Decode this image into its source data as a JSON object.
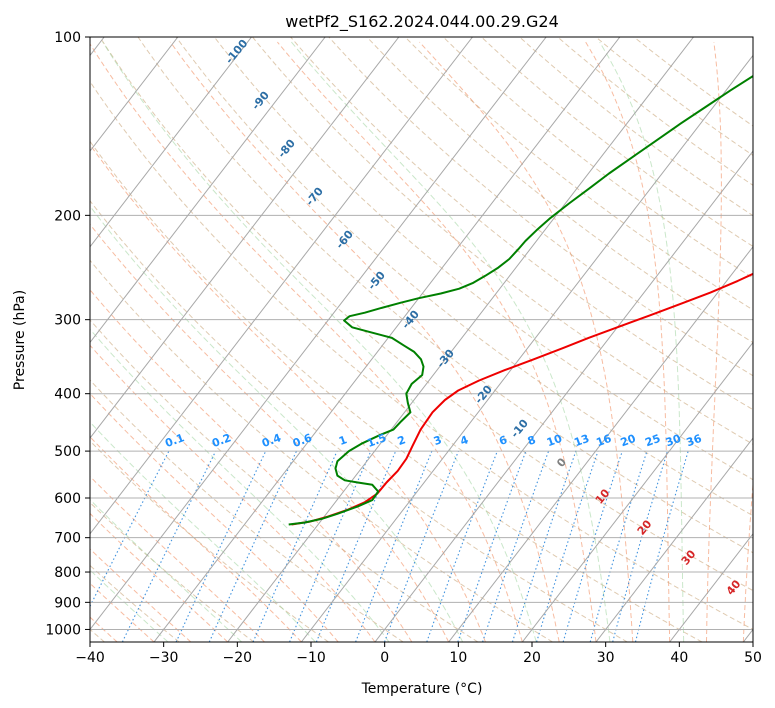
{
  "chart_data": {
    "type": "line",
    "title": "wetPf2_S162.2024.044.00.29.G24",
    "xlabel": "Temperature (°C)",
    "ylabel": "Pressure (hPa)",
    "xlim": [
      -40,
      50
    ],
    "ylim": [
      1050,
      100
    ],
    "y_scale": "log",
    "grid": true,
    "xticks": [
      "−40",
      "−30",
      "−20",
      "−10",
      "0",
      "10",
      "20",
      "30",
      "40",
      "50"
    ],
    "yticks": [
      {
        "p": 100,
        "label": "100"
      },
      {
        "p": 200,
        "label": "200"
      },
      {
        "p": 300,
        "label": "300"
      },
      {
        "p": 400,
        "label": "400"
      },
      {
        "p": 500,
        "label": "500"
      },
      {
        "p": 600,
        "label": "600"
      },
      {
        "p": 700,
        "label": "700"
      },
      {
        "p": 800,
        "label": "800"
      },
      {
        "p": 900,
        "label": "900"
      },
      {
        "p": 1000,
        "label": "1000"
      }
    ],
    "series": [
      {
        "color": "#ee0000",
        "points": [
          [
            -23.6,
            665
          ],
          [
            -21.5,
            658
          ],
          [
            -19.5,
            645
          ],
          [
            -17.5,
            628
          ],
          [
            -16,
            610
          ],
          [
            -15.2,
            590
          ],
          [
            -15.1,
            565
          ],
          [
            -14.8,
            540
          ],
          [
            -14.9,
            515
          ],
          [
            -15.4,
            490
          ],
          [
            -16,
            460
          ],
          [
            -16.2,
            430
          ],
          [
            -15.8,
            410
          ],
          [
            -15,
            395
          ],
          [
            -13.2,
            380
          ],
          [
            -10.8,
            365
          ],
          [
            -8,
            350
          ],
          [
            -5.2,
            335
          ],
          [
            -2.8,
            322
          ],
          [
            0,
            309
          ],
          [
            3.2,
            295
          ],
          [
            6.2,
            282
          ],
          [
            9,
            270
          ],
          [
            11.5,
            258
          ],
          [
            14,
            245
          ],
          [
            16.3,
            232
          ],
          [
            18.5,
            218
          ],
          [
            20.3,
            208
          ],
          [
            22,
            200
          ],
          [
            24,
            189
          ],
          [
            26,
            178
          ],
          [
            27.5,
            170
          ],
          [
            29,
            162
          ],
          [
            30.5,
            153
          ],
          [
            31.8,
            145
          ],
          [
            33.5,
            135
          ],
          [
            35,
            126
          ],
          [
            36.8,
            118
          ],
          [
            38.8,
            111
          ],
          [
            41,
            104
          ],
          [
            43.5,
            100
          ]
        ]
      },
      {
        "color": "#008000",
        "points": [
          [
            -24,
            665
          ],
          [
            -22,
            660
          ],
          [
            -20,
            650
          ],
          [
            -18.5,
            638
          ],
          [
            -16.5,
            620
          ],
          [
            -15.2,
            605
          ],
          [
            -15.3,
            585
          ],
          [
            -16.8,
            570
          ],
          [
            -19,
            565
          ],
          [
            -21,
            560
          ],
          [
            -22.5,
            550
          ],
          [
            -23.5,
            535
          ],
          [
            -24,
            520
          ],
          [
            -23.5,
            500
          ],
          [
            -22.5,
            485
          ],
          [
            -21,
            470
          ],
          [
            -19.7,
            460
          ],
          [
            -19.5,
            445
          ],
          [
            -19.2,
            430
          ],
          [
            -20.5,
            415
          ],
          [
            -21.7,
            400
          ],
          [
            -22,
            385
          ],
          [
            -21.5,
            372
          ],
          [
            -22.2,
            360
          ],
          [
            -23.3,
            350
          ],
          [
            -25,
            340
          ],
          [
            -27,
            332
          ],
          [
            -29.5,
            322
          ],
          [
            -33,
            315
          ],
          [
            -36,
            309
          ],
          [
            -37.8,
            301
          ],
          [
            -37.5,
            296
          ],
          [
            -35.8,
            292
          ],
          [
            -34.2,
            287
          ],
          [
            -32,
            281
          ],
          [
            -30,
            276
          ],
          [
            -27.5,
            271
          ],
          [
            -25.5,
            266
          ],
          [
            -24.2,
            260
          ],
          [
            -23.3,
            253
          ],
          [
            -22.4,
            245
          ],
          [
            -21.8,
            237
          ],
          [
            -21.6,
            228
          ],
          [
            -21.5,
            221
          ],
          [
            -21.1,
            212
          ],
          [
            -20.5,
            202
          ],
          [
            -19.5,
            191
          ],
          [
            -18.3,
            180
          ],
          [
            -17.2,
            170
          ],
          [
            -15.8,
            160
          ],
          [
            -14.3,
            150
          ],
          [
            -12.7,
            140
          ],
          [
            -11,
            131
          ],
          [
            -9.4,
            123
          ],
          [
            -7.5,
            115
          ],
          [
            -5.5,
            108
          ],
          [
            -3.9,
            102
          ],
          [
            -3.3,
            100
          ]
        ]
      }
    ],
    "dry_adiabat_labels": [
      "-100",
      "-90",
      "-80",
      "-70",
      "-60",
      "-50",
      "-40",
      "-30",
      "-20",
      "-10",
      "0",
      "10",
      "20",
      "30",
      "40"
    ],
    "mixing_ratio_labels": [
      "0.1",
      "0.2",
      "0.4",
      "0.6",
      "1",
      "1.5",
      "2",
      "3",
      "4",
      "6",
      "8",
      "10",
      "13",
      "16",
      "20",
      "25",
      "30",
      "36"
    ]
  },
  "colors": {
    "temperature": "#ee0000",
    "dewpoint": "#008000",
    "dry_adiabat_label": "#2c6ea5",
    "mixing_ratio_label": "#1e90ff",
    "moist_adiabat_label": "#d62728",
    "zero_label": "#808080"
  }
}
